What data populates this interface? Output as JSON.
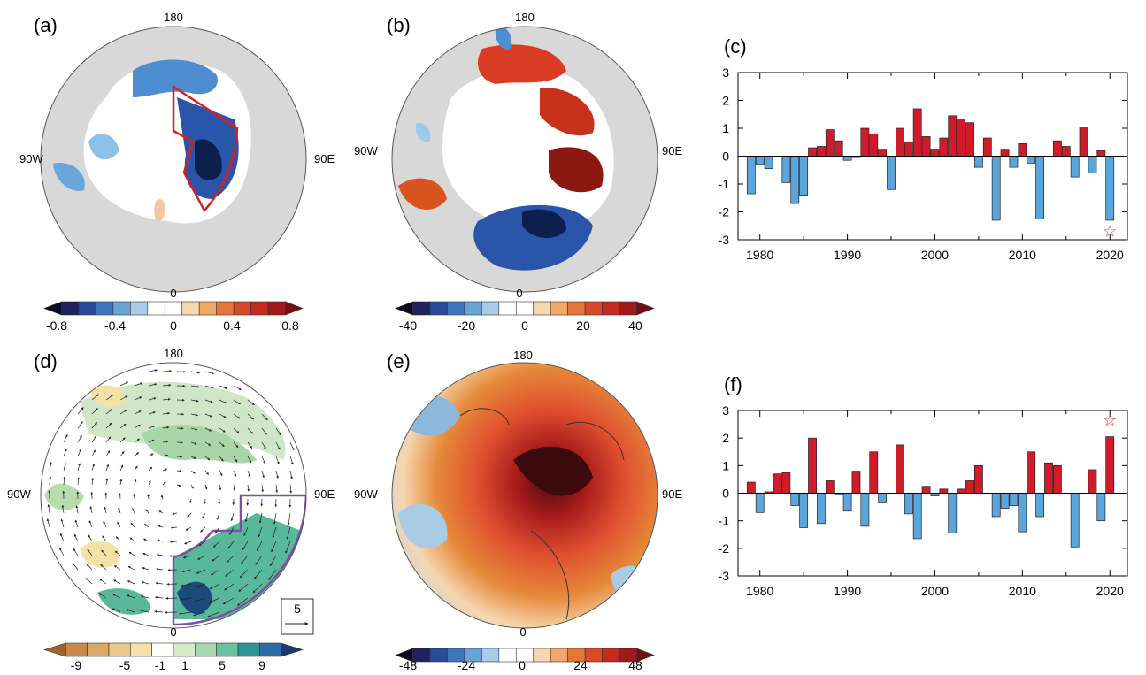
{
  "panels": {
    "a": {
      "label": "(a)",
      "geo": {
        "top": "180",
        "left": "90W",
        "right": "90E",
        "bottom": "0"
      },
      "colorbar": {
        "ticks": [
          "-0.8",
          "-0.4",
          "0",
          "0.4",
          "0.8"
        ]
      }
    },
    "b": {
      "label": "(b)",
      "geo": {
        "top": "180",
        "left": "90W",
        "right": "90E",
        "bottom": "0"
      },
      "colorbar": {
        "ticks": [
          "-40",
          "-20",
          "0",
          "20",
          "40"
        ]
      }
    },
    "c": {
      "label": "(c)"
    },
    "d": {
      "label": "(d)",
      "geo": {
        "top": "180",
        "left": "90W",
        "right": "90E",
        "bottom": "0"
      },
      "colorbar": {
        "ticks": [
          "-9",
          "-5",
          "-1",
          "1",
          "5",
          "9"
        ]
      },
      "ref_vector": "5"
    },
    "e": {
      "label": "(e)",
      "geo": {
        "top": "180",
        "left": "90W",
        "right": "90E",
        "bottom": "0"
      },
      "colorbar": {
        "ticks": [
          "-48",
          "-24",
          "0",
          "24",
          "48"
        ]
      }
    },
    "f": {
      "label": "(f)"
    }
  },
  "colors": {
    "positive_bar": "#d01c2a",
    "negative_bar": "#5aa6dc",
    "land": "#d8d8d8",
    "region_box_a": "#d62020",
    "region_box_d": "#7b4fa6",
    "star": "#e03030"
  },
  "chart_data": [
    {
      "type": "bar",
      "panel": "(c)",
      "x": [
        1979,
        1980,
        1981,
        1982,
        1983,
        1984,
        1985,
        1986,
        1987,
        1988,
        1989,
        1990,
        1991,
        1992,
        1993,
        1994,
        1995,
        1996,
        1997,
        1998,
        1999,
        2000,
        2001,
        2002,
        2003,
        2004,
        2005,
        2006,
        2007,
        2008,
        2009,
        2010,
        2011,
        2012,
        2013,
        2014,
        2015,
        2016,
        2017,
        2018,
        2019,
        2020
      ],
      "values": [
        -1.35,
        -0.3,
        -0.45,
        0.0,
        -0.95,
        -1.7,
        -1.4,
        0.3,
        0.35,
        0.95,
        0.55,
        -0.15,
        -0.05,
        1.0,
        0.8,
        0.25,
        -1.2,
        1.0,
        0.5,
        1.7,
        0.7,
        0.25,
        0.65,
        1.45,
        1.3,
        1.2,
        -0.4,
        0.65,
        -2.3,
        0.25,
        -0.4,
        0.45,
        -0.25,
        -2.25,
        0.0,
        0.55,
        0.35,
        -0.75,
        1.05,
        -0.6,
        0.2,
        -2.3
      ],
      "ylim": [
        -3,
        3
      ],
      "yticks": [
        "3",
        "2",
        "1",
        "0",
        "-1",
        "-2",
        "-3"
      ],
      "xticks": [
        "1980",
        "1990",
        "2000",
        "2010",
        "2020"
      ],
      "marker": {
        "symbol": "☆",
        "x": 2020,
        "y": -2.7
      }
    },
    {
      "type": "bar",
      "panel": "(f)",
      "x": [
        1979,
        1980,
        1981,
        1982,
        1983,
        1984,
        1985,
        1986,
        1987,
        1988,
        1989,
        1990,
        1991,
        1992,
        1993,
        1994,
        1995,
        1996,
        1997,
        1998,
        1999,
        2000,
        2001,
        2002,
        2003,
        2004,
        2005,
        2006,
        2007,
        2008,
        2009,
        2010,
        2011,
        2012,
        2013,
        2014,
        2015,
        2016,
        2017,
        2018,
        2019,
        2020
      ],
      "values": [
        0.4,
        -0.7,
        0.05,
        0.7,
        0.75,
        -0.45,
        -1.25,
        2.0,
        -1.1,
        0.45,
        -0.05,
        -0.65,
        0.8,
        -1.2,
        1.5,
        -0.35,
        0.0,
        1.75,
        -0.75,
        -1.65,
        0.25,
        -0.1,
        0.15,
        -1.45,
        0.15,
        0.45,
        1.0,
        0.0,
        -0.85,
        -0.55,
        -0.45,
        -1.4,
        1.5,
        -0.85,
        1.1,
        1.0,
        0.0,
        -1.95,
        0.0,
        0.85,
        -1.0,
        2.05
      ],
      "ylim": [
        -3,
        3
      ],
      "yticks": [
        "3",
        "2",
        "1",
        "0",
        "-1",
        "-2",
        "-3"
      ],
      "xticks": [
        "1980",
        "1990",
        "2000",
        "2010",
        "2020"
      ],
      "marker": {
        "symbol": "☆",
        "x": 2020,
        "y": 2.65
      }
    }
  ]
}
